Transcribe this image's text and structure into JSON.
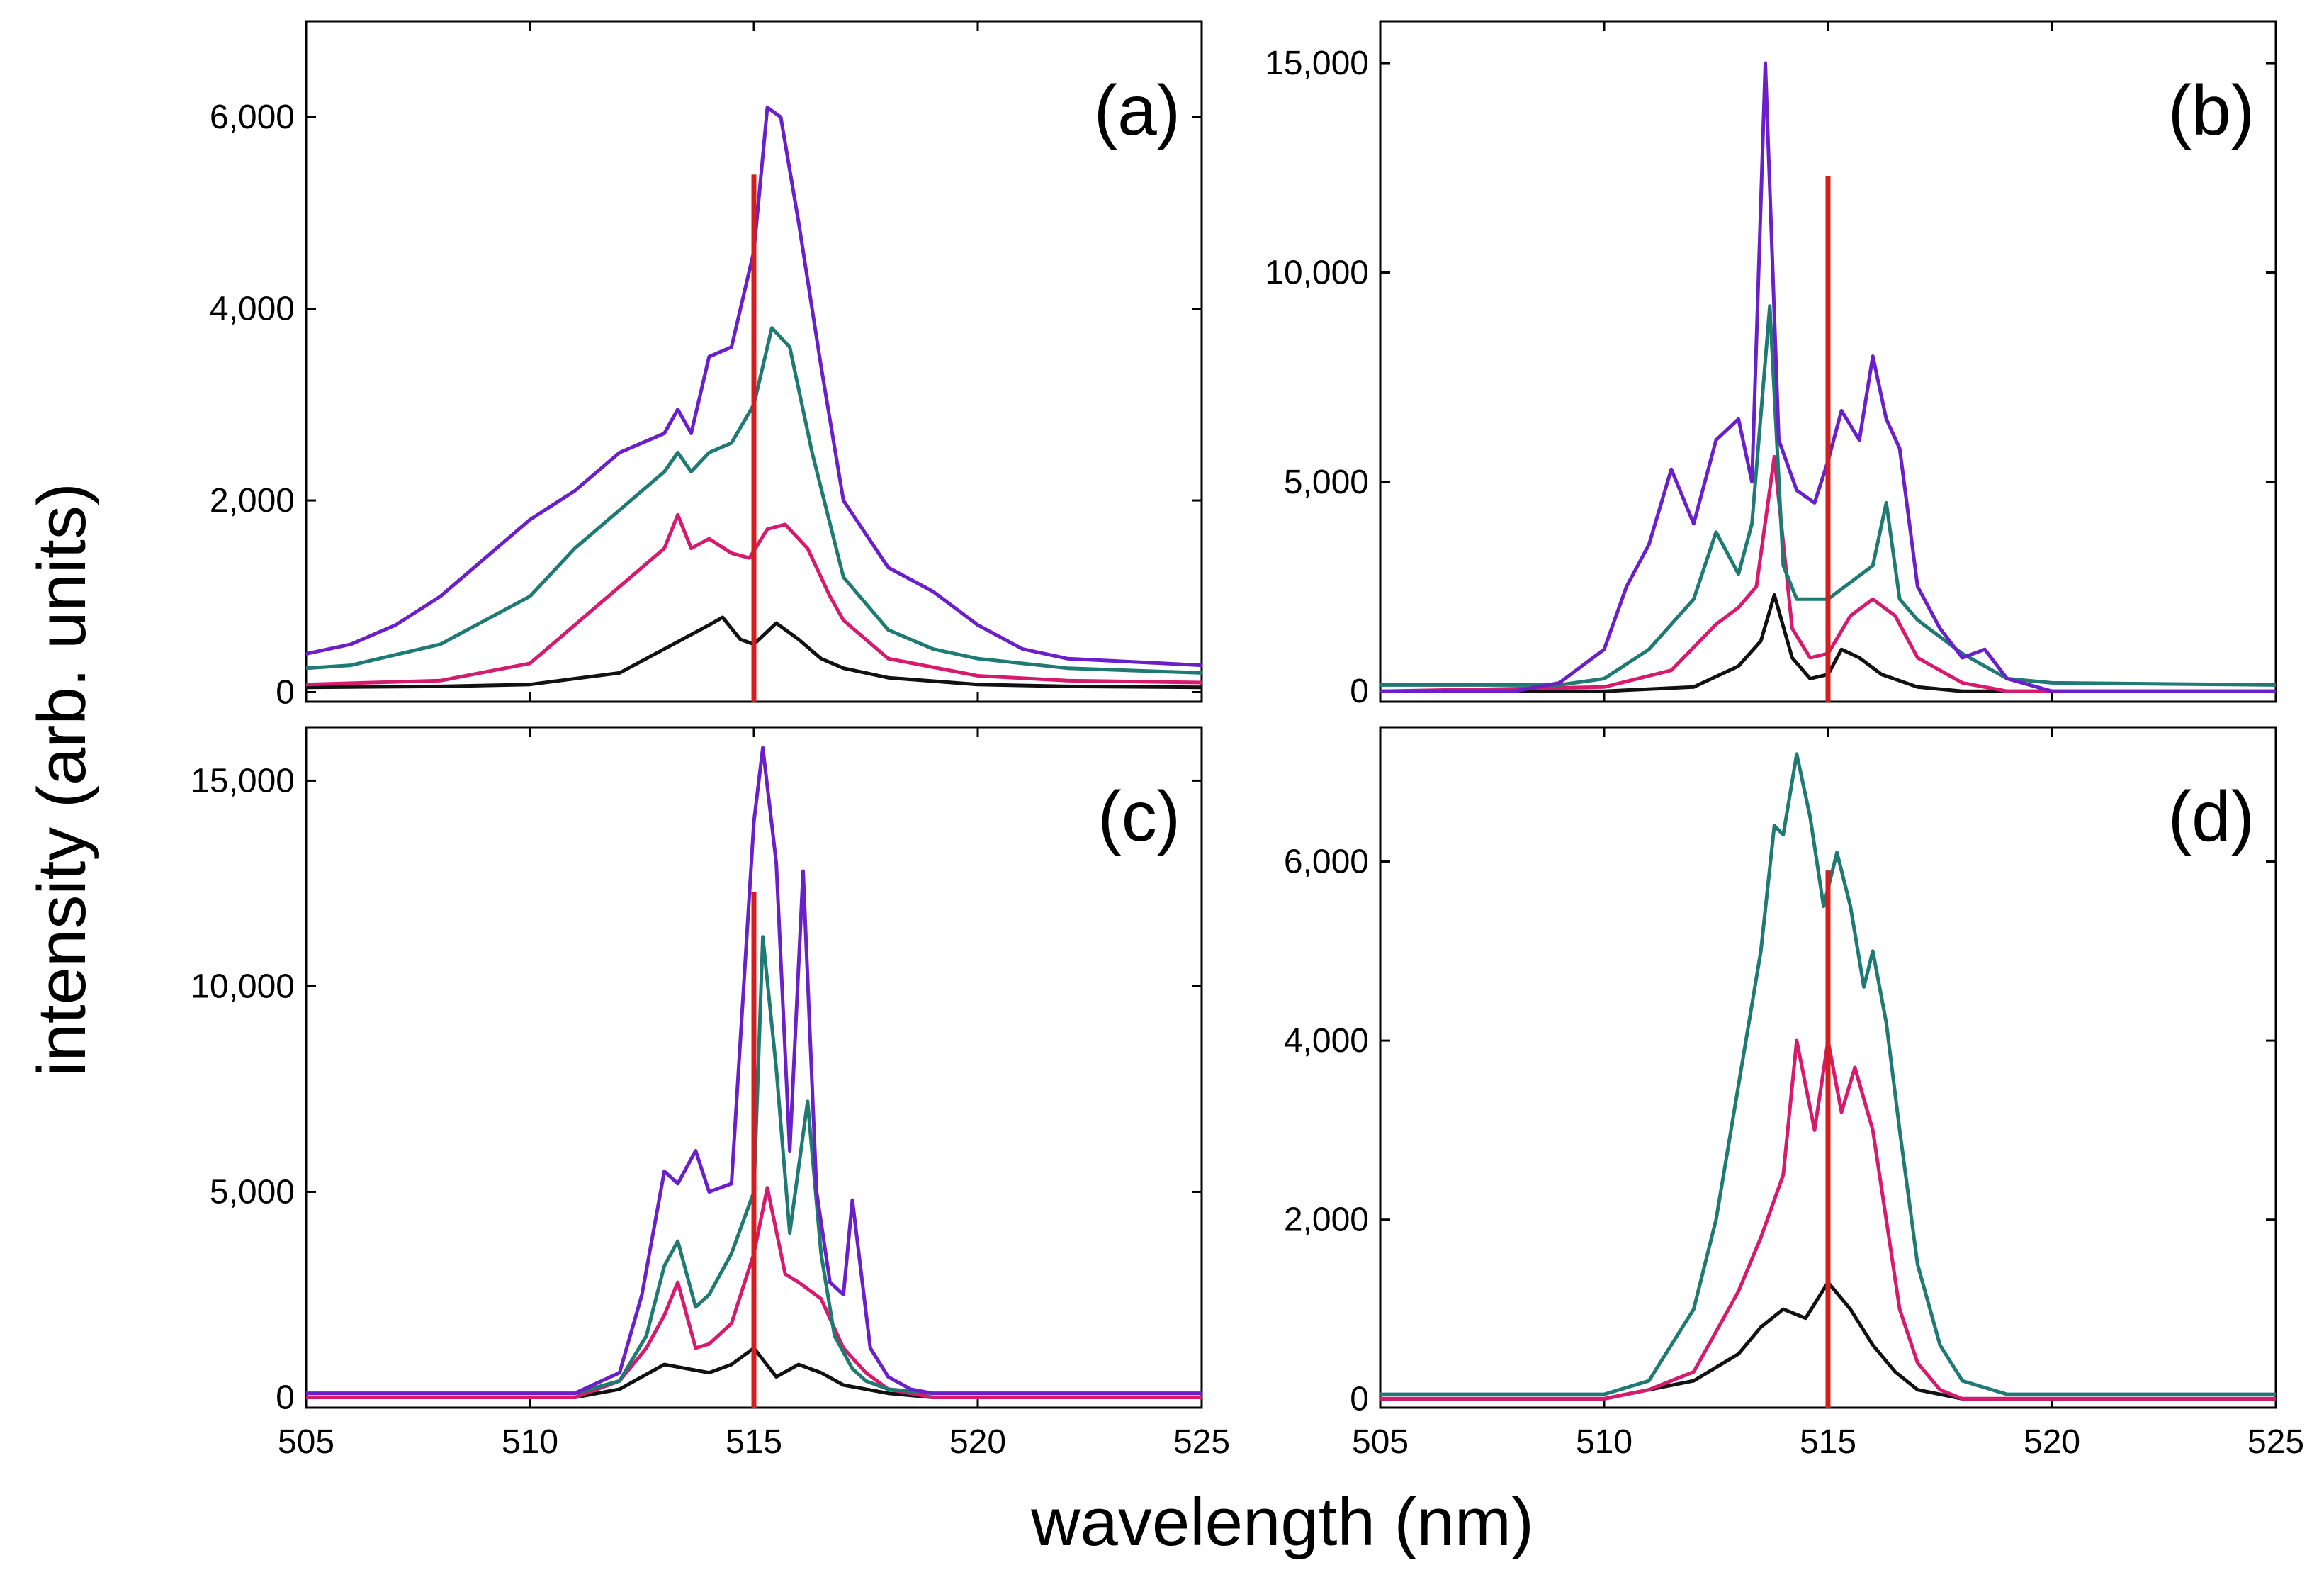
{
  "figure": {
    "xlabel": "wavelength (nm)",
    "ylabel": "intensity (arb. units)"
  },
  "colors": {
    "black": "#111111",
    "magenta": "#d61a6e",
    "teal": "#1e7a72",
    "purple": "#6a1fc9",
    "marker": "#d11f1f"
  },
  "chart_data": [
    {
      "type": "line",
      "panel": "(a)",
      "xlim": [
        505,
        525
      ],
      "ylim": [
        -100,
        7000
      ],
      "xticks": [
        505,
        510,
        515,
        520,
        525
      ],
      "yticks": [
        0,
        2000,
        4000,
        6000
      ],
      "ytick_labels": [
        "0",
        "2,000",
        "4,000",
        "6,000"
      ],
      "marker": {
        "x": 515,
        "ymax": 5400
      },
      "series": [
        {
          "name": "black",
          "x": [
            505,
            508,
            510,
            512,
            513,
            514,
            514.3,
            514.7,
            515,
            515.5,
            516,
            516.5,
            517,
            518,
            520,
            522,
            525
          ],
          "y": [
            50,
            60,
            80,
            200,
            450,
            700,
            780,
            550,
            500,
            720,
            550,
            350,
            250,
            150,
            80,
            60,
            50
          ]
        },
        {
          "name": "magenta",
          "x": [
            505,
            508,
            510,
            511,
            512,
            513,
            513.3,
            513.6,
            514,
            514.5,
            514.9,
            515.3,
            515.7,
            516.2,
            516.7,
            517,
            518,
            520,
            522,
            525
          ],
          "y": [
            80,
            120,
            300,
            700,
            1100,
            1500,
            1850,
            1500,
            1600,
            1450,
            1400,
            1700,
            1750,
            1500,
            1000,
            750,
            350,
            170,
            120,
            100
          ]
        },
        {
          "name": "teal",
          "x": [
            505,
            506,
            508,
            510,
            511,
            512,
            513,
            513.3,
            513.6,
            514,
            514.5,
            515,
            515.4,
            515.8,
            516.3,
            517,
            518,
            519,
            520,
            522,
            525
          ],
          "y": [
            250,
            280,
            500,
            1000,
            1500,
            1900,
            2300,
            2500,
            2300,
            2500,
            2600,
            3000,
            3800,
            3600,
            2500,
            1200,
            650,
            450,
            350,
            250,
            200
          ]
        },
        {
          "name": "purple",
          "x": [
            505,
            506,
            507,
            508,
            509,
            510,
            511,
            512,
            513,
            513.3,
            513.6,
            514,
            514.5,
            515,
            515.3,
            515.6,
            516,
            516.5,
            517,
            518,
            519,
            520,
            521,
            522,
            525
          ],
          "y": [
            400,
            500,
            700,
            1000,
            1400,
            1800,
            2100,
            2500,
            2700,
            2950,
            2700,
            3500,
            3600,
            4600,
            6100,
            6000,
            4900,
            3400,
            2000,
            1300,
            1050,
            700,
            450,
            350,
            280
          ]
        }
      ]
    },
    {
      "type": "line",
      "panel": "(b)",
      "xlim": [
        505,
        525
      ],
      "ylim": [
        -250,
        16000
      ],
      "xticks": [
        505,
        510,
        515,
        520,
        525
      ],
      "yticks": [
        0,
        5000,
        10000,
        15000
      ],
      "ytick_labels": [
        "0",
        "5,000",
        "10,000",
        "15,000"
      ],
      "marker": {
        "x": 515,
        "ymax": 12300
      },
      "series": [
        {
          "name": "black",
          "x": [
            505,
            510,
            512,
            513,
            513.5,
            513.8,
            514.2,
            514.6,
            515,
            515.3,
            515.7,
            516.2,
            517,
            518,
            520,
            525
          ],
          "y": [
            0,
            0,
            100,
            600,
            1200,
            2300,
            800,
            300,
            400,
            1000,
            800,
            400,
            100,
            0,
            0,
            0
          ]
        },
        {
          "name": "magenta",
          "x": [
            505,
            510,
            511.5,
            512.5,
            513,
            513.4,
            513.8,
            514.2,
            514.6,
            515,
            515.5,
            516,
            516.5,
            517,
            518,
            519,
            520,
            525
          ],
          "y": [
            0,
            100,
            500,
            1600,
            2000,
            2500,
            5600,
            1500,
            800,
            900,
            1800,
            2200,
            1800,
            800,
            200,
            0,
            0,
            0
          ]
        },
        {
          "name": "teal",
          "x": [
            505,
            509,
            510,
            511,
            512,
            512.5,
            513,
            513.3,
            513.7,
            514,
            514.3,
            514.7,
            515,
            515.5,
            516,
            516.3,
            516.6,
            517,
            518,
            519,
            520,
            525
          ],
          "y": [
            150,
            150,
            300,
            1000,
            2200,
            3800,
            2800,
            4000,
            9200,
            3000,
            2200,
            2200,
            2200,
            2600,
            3000,
            4500,
            2200,
            1700,
            900,
            300,
            200,
            150
          ]
        },
        {
          "name": "purple",
          "x": [
            505,
            508,
            509,
            510,
            510.5,
            511,
            511.5,
            512,
            512.5,
            513,
            513.3,
            513.6,
            513.9,
            514.3,
            514.7,
            515,
            515.3,
            515.7,
            516,
            516.3,
            516.6,
            517,
            517.5,
            518,
            518.5,
            519,
            520,
            525
          ],
          "y": [
            0,
            0,
            200,
            1000,
            2500,
            3500,
            5300,
            4000,
            6000,
            6500,
            5000,
            15000,
            6000,
            4800,
            4500,
            5500,
            6700,
            6000,
            8000,
            6500,
            5800,
            2500,
            1500,
            800,
            1000,
            300,
            0,
            0
          ]
        }
      ]
    },
    {
      "type": "line",
      "panel": "(c)",
      "xlim": [
        505,
        525
      ],
      "ylim": [
        -250,
        16300
      ],
      "xticks": [
        505,
        510,
        515,
        520,
        525
      ],
      "yticks": [
        0,
        5000,
        10000,
        15000
      ],
      "ytick_labels": [
        "0",
        "5,000",
        "10,000",
        "15,000"
      ],
      "marker": {
        "x": 515,
        "ymax": 12300
      },
      "series": [
        {
          "name": "black",
          "x": [
            505,
            511,
            512,
            513,
            514,
            514.5,
            515,
            515.5,
            516,
            516.5,
            517,
            518,
            519,
            525
          ],
          "y": [
            0,
            0,
            200,
            800,
            600,
            800,
            1200,
            500,
            800,
            600,
            300,
            100,
            0,
            0
          ]
        },
        {
          "name": "magenta",
          "x": [
            505,
            511,
            512,
            512.6,
            513,
            513.3,
            513.7,
            514,
            514.5,
            515,
            515.3,
            515.7,
            516,
            516.5,
            517,
            517.5,
            518,
            519,
            525
          ],
          "y": [
            0,
            0,
            400,
            1200,
            2000,
            2800,
            1200,
            1300,
            1800,
            3500,
            5100,
            3000,
            2800,
            2400,
            1200,
            600,
            200,
            0,
            0
          ]
        },
        {
          "name": "teal",
          "x": [
            505,
            511,
            512,
            512.6,
            513,
            513.3,
            513.7,
            514,
            514.5,
            515,
            515.2,
            515.5,
            515.8,
            516.2,
            516.5,
            516.8,
            517.2,
            517.5,
            518,
            519,
            525
          ],
          "y": [
            100,
            100,
            400,
            1500,
            3200,
            3800,
            2200,
            2500,
            3500,
            5000,
            11200,
            8000,
            4000,
            7200,
            3500,
            1500,
            700,
            400,
            200,
            100,
            100
          ]
        },
        {
          "name": "purple",
          "x": [
            505,
            511,
            512,
            512.5,
            513,
            513.3,
            513.7,
            514,
            514.5,
            515,
            515.2,
            515.5,
            515.8,
            516.1,
            516.4,
            516.7,
            517,
            517.2,
            517.6,
            518,
            518.5,
            519,
            525
          ],
          "y": [
            100,
            100,
            600,
            2500,
            5500,
            5200,
            6000,
            5000,
            5200,
            14000,
            15800,
            13000,
            6000,
            12800,
            5000,
            2800,
            2500,
            4800,
            1200,
            500,
            200,
            100,
            100
          ]
        }
      ]
    },
    {
      "type": "line",
      "panel": "(d)",
      "xlim": [
        505,
        525
      ],
      "ylim": [
        -100,
        7500
      ],
      "xticks": [
        505,
        510,
        515,
        520,
        525
      ],
      "yticks": [
        0,
        2000,
        4000,
        6000
      ],
      "ytick_labels": [
        "0",
        "2,000",
        "4,000",
        "6,000"
      ],
      "marker": {
        "x": 515,
        "ymax": 5900
      },
      "series": [
        {
          "name": "black",
          "x": [
            505,
            510,
            511,
            512,
            513,
            513.5,
            514,
            514.5,
            515,
            515.5,
            516,
            516.5,
            517,
            518,
            525
          ],
          "y": [
            0,
            0,
            100,
            200,
            500,
            800,
            1000,
            900,
            1300,
            1000,
            600,
            300,
            100,
            0,
            0
          ]
        },
        {
          "name": "magenta",
          "x": [
            505,
            510,
            511,
            512,
            513,
            513.5,
            514,
            514.3,
            514.7,
            515,
            515.3,
            515.6,
            516,
            516.3,
            516.6,
            517,
            517.5,
            518,
            525
          ],
          "y": [
            0,
            0,
            100,
            300,
            1200,
            1800,
            2500,
            4000,
            3000,
            4000,
            3200,
            3700,
            3000,
            2000,
            1000,
            400,
            100,
            0,
            0
          ]
        },
        {
          "name": "teal",
          "x": [
            505,
            510,
            511,
            512,
            512.5,
            513,
            513.5,
            513.8,
            514,
            514.3,
            514.6,
            514.9,
            515.2,
            515.5,
            515.8,
            516,
            516.3,
            516.6,
            517,
            517.5,
            518,
            519,
            525
          ],
          "y": [
            50,
            50,
            200,
            1000,
            2000,
            3500,
            5000,
            6400,
            6300,
            7200,
            6500,
            5500,
            6100,
            5500,
            4600,
            5000,
            4200,
            3000,
            1500,
            600,
            200,
            50,
            50
          ]
        }
      ]
    }
  ]
}
